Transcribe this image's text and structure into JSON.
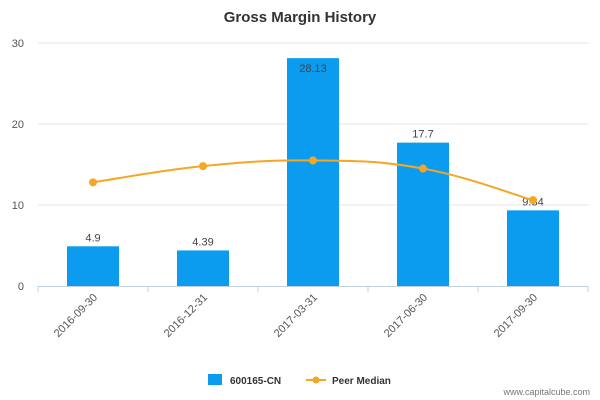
{
  "chart_data": {
    "type": "bar",
    "title": "Gross Margin History",
    "categories": [
      "2016-09-30",
      "2016-12-31",
      "2017-03-31",
      "2017-06-30",
      "2017-09-30"
    ],
    "series": [
      {
        "name": "600165-CN",
        "type": "bar",
        "values": [
          4.9,
          4.39,
          28.13,
          17.7,
          9.34
        ],
        "labels": [
          "4.9",
          "4.39",
          "28.13",
          "17.7",
          "9.34"
        ],
        "color": "#0b9cf0"
      },
      {
        "name": "Peer Median",
        "type": "line",
        "values": [
          12.8,
          14.8,
          15.5,
          14.5,
          10.6
        ],
        "color": "#f5a623"
      }
    ],
    "yticks": [
      "0",
      "10",
      "20",
      "30"
    ],
    "ylim": [
      0,
      30
    ],
    "grid": true,
    "legend_position": "bottom"
  },
  "credit": "www.capitalcube.com"
}
